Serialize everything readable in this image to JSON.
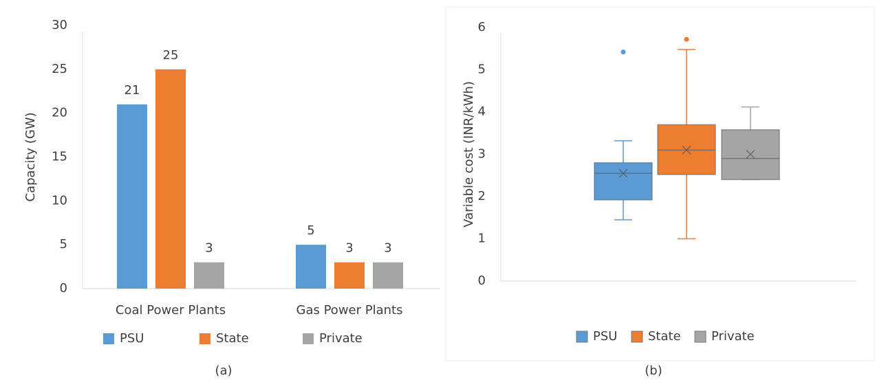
{
  "chart_data": [
    {
      "type": "bar",
      "ylabel": "Capacity (GW)",
      "caption": "(a)",
      "categories": [
        "Coal Power Plants",
        "Gas Power Plants"
      ],
      "series": [
        {
          "name": "PSU",
          "color": "#5b9bd5",
          "values": [
            21,
            5
          ]
        },
        {
          "name": "State",
          "color": "#ed7d31",
          "values": [
            25,
            3
          ]
        },
        {
          "name": "Private",
          "color": "#a5a5a5",
          "values": [
            3,
            3
          ]
        }
      ],
      "ylim": [
        0,
        30
      ],
      "yticks": [
        0,
        5,
        10,
        15,
        20,
        25,
        30
      ],
      "grid": false,
      "data_labels": true,
      "legend": "bottom"
    },
    {
      "type": "box",
      "ylabel": "Variable cost (INR/kWh)",
      "caption": "(b)",
      "series": [
        {
          "name": "PSU",
          "color": "#5b9bd5",
          "min": 1.45,
          "q1": 1.92,
          "median": 2.55,
          "q3": 2.8,
          "max": 3.32,
          "mean": 2.55,
          "outliers": [
            5.42
          ]
        },
        {
          "name": "State",
          "color": "#ed7d31",
          "min": 1.0,
          "q1": 2.52,
          "median": 3.1,
          "q3": 3.7,
          "max": 5.48,
          "mean": 3.1,
          "outliers": [
            5.72
          ]
        },
        {
          "name": "Private",
          "color": "#a5a5a5",
          "min": 2.4,
          "q1": 2.4,
          "median": 2.9,
          "q3": 3.58,
          "max": 4.12,
          "mean": 3.0,
          "outliers": []
        }
      ],
      "ylim": [
        0,
        6
      ],
      "yticks": [
        0,
        1,
        2,
        3,
        4,
        5,
        6
      ],
      "grid": false,
      "legend": "bottom"
    }
  ]
}
